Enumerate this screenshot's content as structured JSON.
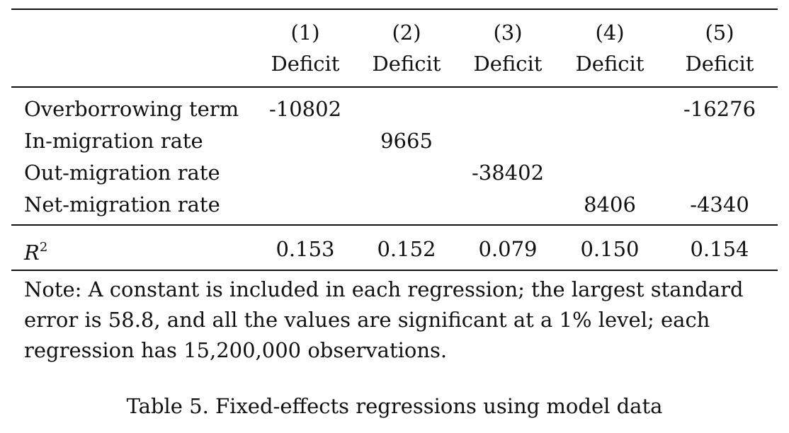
{
  "table": {
    "columns": [
      {
        "number": "(1)",
        "label": "Deficit"
      },
      {
        "number": "(2)",
        "label": "Deficit"
      },
      {
        "number": "(3)",
        "label": "Deficit"
      },
      {
        "number": "(4)",
        "label": "Deficit"
      },
      {
        "number": "(5)",
        "label": "Deficit"
      }
    ],
    "rows": [
      {
        "label": "Overborrowing term",
        "values": [
          "-10802",
          "",
          "",
          "",
          "-16276"
        ]
      },
      {
        "label": "In-migration rate",
        "values": [
          "",
          "9665",
          "",
          "",
          ""
        ]
      },
      {
        "label": "Out-migration rate",
        "values": [
          "",
          "",
          "-38402",
          "",
          ""
        ]
      },
      {
        "label": "Net-migration rate",
        "values": [
          "",
          "",
          "",
          "8406",
          "-4340"
        ]
      }
    ],
    "r2": {
      "label": "R",
      "superscript": "2",
      "values": [
        "0.153",
        "0.152",
        "0.079",
        "0.150",
        "0.154"
      ]
    }
  },
  "note": "Note: A constant is included in each regression; the largest standard error is 58.8, and all the values are significant at a 1% level; each regression has 15,200,000 observations.",
  "caption": "Table 5. Fixed-effects regressions using model data"
}
